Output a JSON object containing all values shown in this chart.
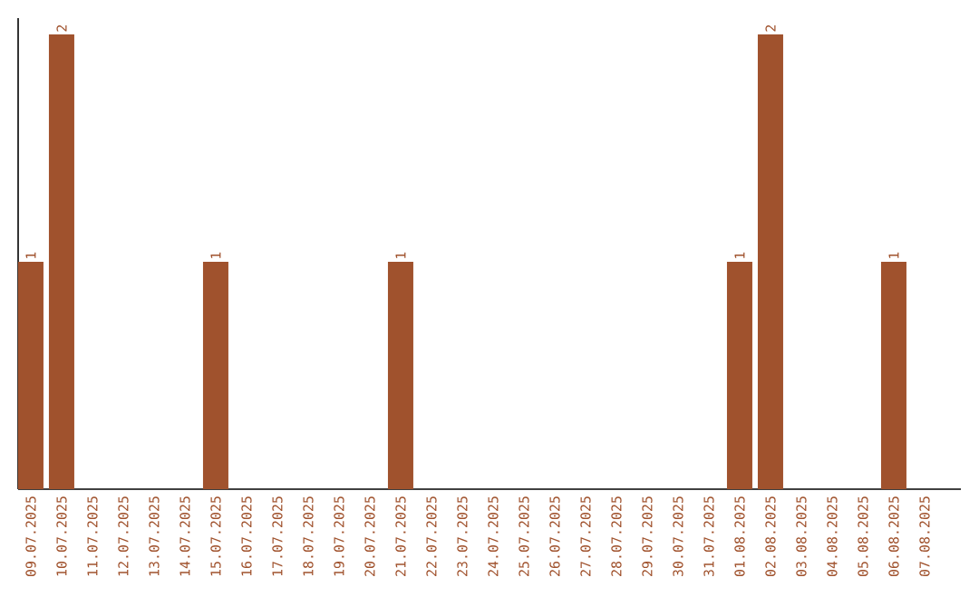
{
  "chart_data": {
    "type": "bar",
    "color": "#a0522d",
    "categories": [
      "09.07.2025",
      "10.07.2025",
      "11.07.2025",
      "12.07.2025",
      "13.07.2025",
      "14.07.2025",
      "15.07.2025",
      "16.07.2025",
      "17.07.2025",
      "18.07.2025",
      "19.07.2025",
      "20.07.2025",
      "21.07.2025",
      "22.07.2025",
      "23.07.2025",
      "24.07.2025",
      "25.07.2025",
      "26.07.2025",
      "27.07.2025",
      "28.07.2025",
      "29.07.2025",
      "30.07.2025",
      "31.07.2025",
      "01.08.2025",
      "02.08.2025",
      "03.08.2025",
      "04.08.2025",
      "05.08.2025",
      "06.08.2025",
      "07.08.2025"
    ],
    "values": [
      1,
      2,
      0,
      0,
      0,
      0,
      1,
      0,
      0,
      0,
      0,
      0,
      1,
      0,
      0,
      0,
      0,
      0,
      0,
      0,
      0,
      0,
      0,
      1,
      2,
      0,
      0,
      0,
      1,
      0
    ],
    "value_labels": [
      "1",
      "2",
      null,
      null,
      null,
      null,
      "1",
      null,
      null,
      null,
      null,
      null,
      "1",
      null,
      null,
      null,
      null,
      null,
      null,
      null,
      null,
      null,
      null,
      "1",
      "2",
      null,
      null,
      null,
      "1",
      null
    ],
    "grid": false
  }
}
